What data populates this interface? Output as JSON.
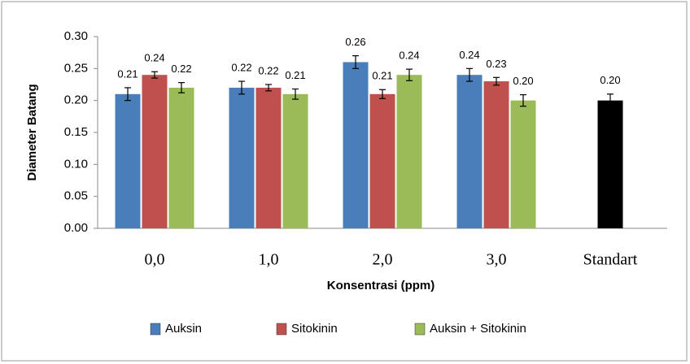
{
  "chart_data": {
    "type": "bar",
    "categories": [
      "0,0",
      "1,0",
      "2,0",
      "3,0",
      "Standart"
    ],
    "xlabel": "Konsentrasi (ppm)",
    "ylabel": "Diameter Batang",
    "ylim": [
      0,
      0.3
    ],
    "yticks": [
      {
        "value": 0,
        "label": "0.00"
      },
      {
        "value": 0.05,
        "label": "0.05"
      },
      {
        "value": 0.1,
        "label": "0.10"
      },
      {
        "value": 0.15,
        "label": "0.15"
      },
      {
        "value": 0.2,
        "label": "0.20"
      },
      {
        "value": 0.25,
        "label": "0.25"
      },
      {
        "value": 0.3,
        "label": "0.30"
      }
    ],
    "grid": false,
    "legend": "bottom",
    "series": [
      {
        "name": "Auksin",
        "color": "#4a7ebb",
        "values": [
          0.21,
          0.22,
          0.26,
          0.24,
          null
        ],
        "value_labels": [
          "0.21",
          "0.22",
          "0.26",
          "0.24",
          null
        ],
        "errors": [
          0.01,
          0.01,
          0.01,
          0.01,
          null
        ]
      },
      {
        "name": "Sitokinin",
        "color": "#c0504d",
        "values": [
          0.24,
          0.22,
          0.21,
          0.23,
          null
        ],
        "value_labels": [
          "0.24",
          "0.22",
          "0.21",
          "0.23",
          null
        ],
        "errors": [
          0.005,
          0.005,
          0.007,
          0.006,
          null
        ]
      },
      {
        "name": "Auksin + Sitokinin",
        "color": "#9bbb59",
        "values": [
          0.22,
          0.21,
          0.24,
          0.2,
          null
        ],
        "value_labels": [
          "0.22",
          "0.21",
          "0.24",
          "0.20",
          null
        ],
        "errors": [
          0.008,
          0.008,
          0.009,
          0.009,
          null
        ]
      },
      {
        "color": "#000000",
        "values": [
          null,
          null,
          null,
          null,
          0.2
        ],
        "value_labels": [
          null,
          null,
          null,
          null,
          "0.20"
        ],
        "errors": [
          null,
          null,
          null,
          null,
          0.01
        ]
      }
    ]
  }
}
